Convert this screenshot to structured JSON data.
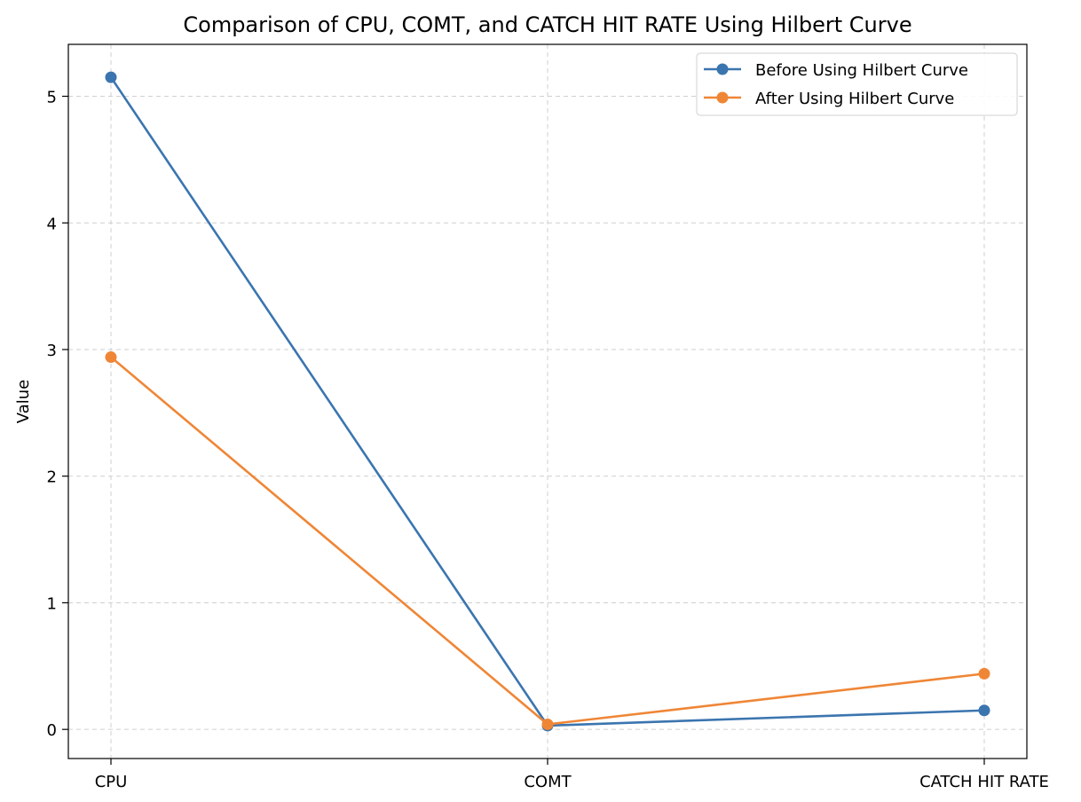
{
  "chart_data": {
    "type": "line",
    "title": "Comparison of CPU, COMT, and CATCH HIT RATE Using Hilbert Curve",
    "xlabel": "",
    "ylabel": "Value",
    "categories": [
      "CPU",
      "COMT",
      "CATCH HIT RATE"
    ],
    "series": [
      {
        "name": "Before Using Hilbert Curve",
        "color": "#3b75af",
        "marker": "circle",
        "values": [
          5.15,
          0.03,
          0.15
        ]
      },
      {
        "name": "After Using Hilbert Curve",
        "color": "#ef8636",
        "marker": "circle",
        "values": [
          2.94,
          0.04,
          0.44
        ]
      }
    ],
    "y_ticks": [
      0,
      1,
      2,
      3,
      4,
      5
    ],
    "ylim": [
      -0.23,
      5.41
    ],
    "grid": true,
    "grid_style": "dashed",
    "legend_position": "top-right"
  }
}
